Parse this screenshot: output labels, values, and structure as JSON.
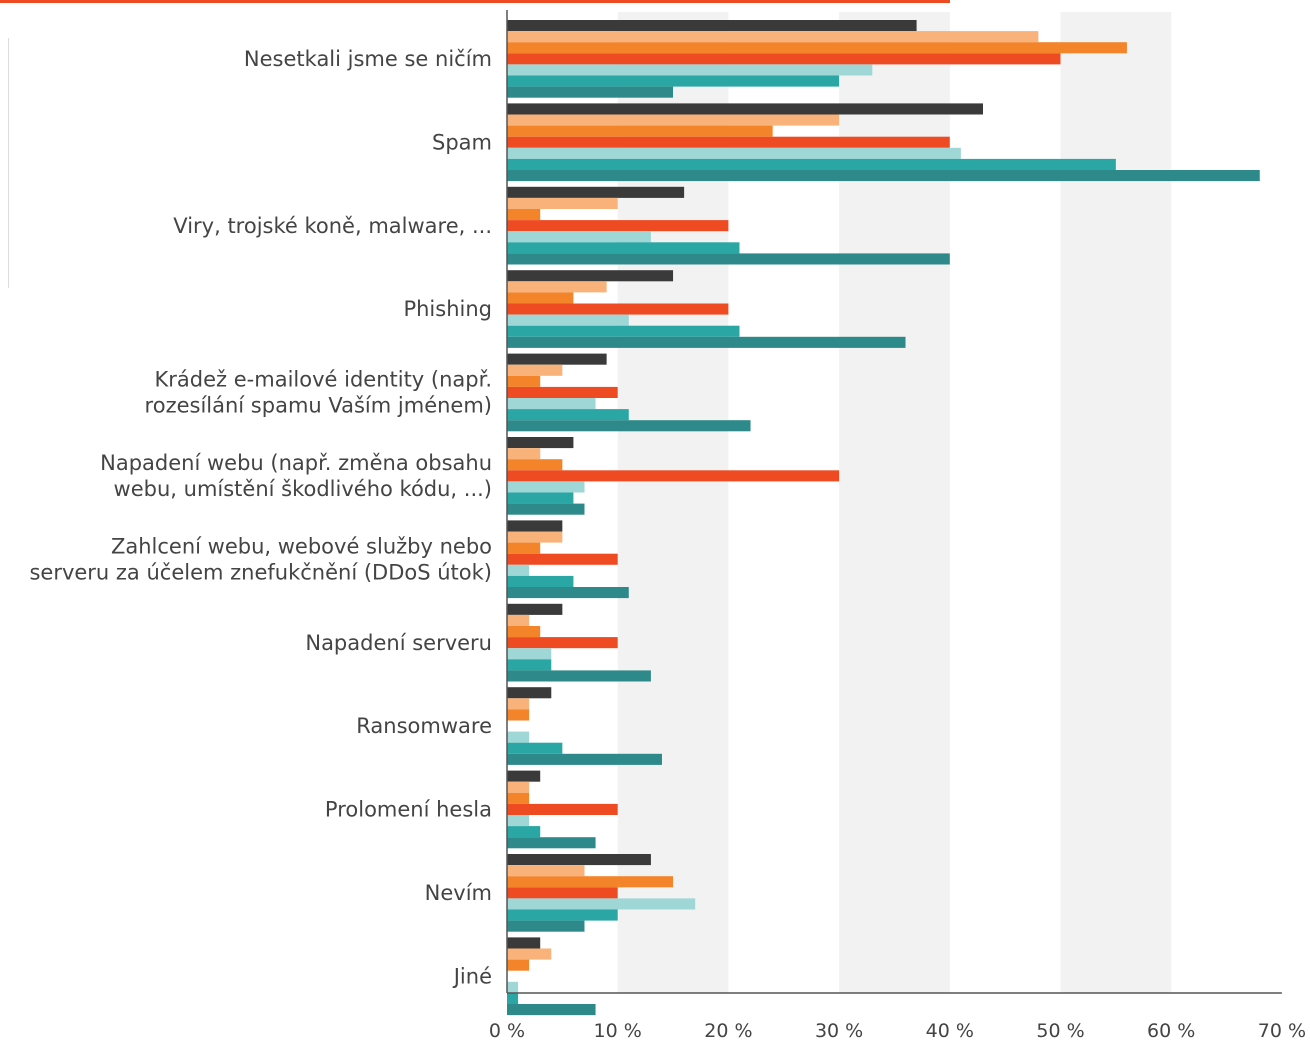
{
  "chart_data": {
    "type": "bar",
    "orientation": "horizontal",
    "title": "",
    "xlabel": "",
    "ylabel": "",
    "xlim": [
      0,
      70
    ],
    "x_ticks": [
      "0 %",
      "10 %",
      "20 %",
      "30 %",
      "40 %",
      "50 %",
      "60 %",
      "70 %"
    ],
    "grid": "alternating vertical bands",
    "legend": "none",
    "categories": [
      [
        "Nesetkali jsme se ničím"
      ],
      [
        "Spam"
      ],
      [
        "Viry, trojské koně, malware, ..."
      ],
      [
        "Phishing"
      ],
      [
        "Krádež e-mailové identity (např.",
        "rozesílání spamu Vaším jménem)"
      ],
      [
        "Napadení webu (např. změna obsahu",
        "webu, umístění škodlivého kódu, ...)"
      ],
      [
        "Zahlcení webu, webové služby nebo",
        "serveru za účelem znefukčnění (DDoS útok)"
      ],
      [
        "Napadení serveru"
      ],
      [
        "Ransomware"
      ],
      [
        "Prolomení hesla"
      ],
      [
        "Nevím"
      ],
      [
        "Jiné"
      ]
    ],
    "series": [
      {
        "color": "#3a3a3a",
        "values": [
          37,
          43,
          16,
          15,
          9,
          6,
          5,
          5,
          4,
          3,
          13,
          3
        ]
      },
      {
        "color": "#f8b27a",
        "values": [
          48,
          30,
          10,
          9,
          5,
          3,
          5,
          2,
          2,
          2,
          7,
          4
        ]
      },
      {
        "color": "#f4842a",
        "values": [
          56,
          24,
          3,
          6,
          3,
          5,
          3,
          3,
          2,
          2,
          15,
          2
        ]
      },
      {
        "color": "#ee4b23",
        "values": [
          50,
          40,
          20,
          20,
          10,
          30,
          10,
          10,
          0,
          10,
          10,
          0
        ]
      },
      {
        "color": "#9fd6d6",
        "values": [
          33,
          41,
          13,
          11,
          8,
          7,
          2,
          4,
          2,
          2,
          17,
          1
        ]
      },
      {
        "color": "#2aa7a4",
        "values": [
          30,
          55,
          21,
          21,
          11,
          6,
          6,
          4,
          5,
          3,
          10,
          1
        ]
      },
      {
        "color": "#2e8a8a",
        "values": [
          15,
          68,
          40,
          36,
          22,
          7,
          11,
          13,
          14,
          8,
          7,
          8
        ]
      }
    ],
    "colors": {
      "band": "#f2f2f2",
      "axis": "#555555",
      "top_accent": "#ee4b23",
      "left_panel_border": "#dddddd"
    }
  }
}
